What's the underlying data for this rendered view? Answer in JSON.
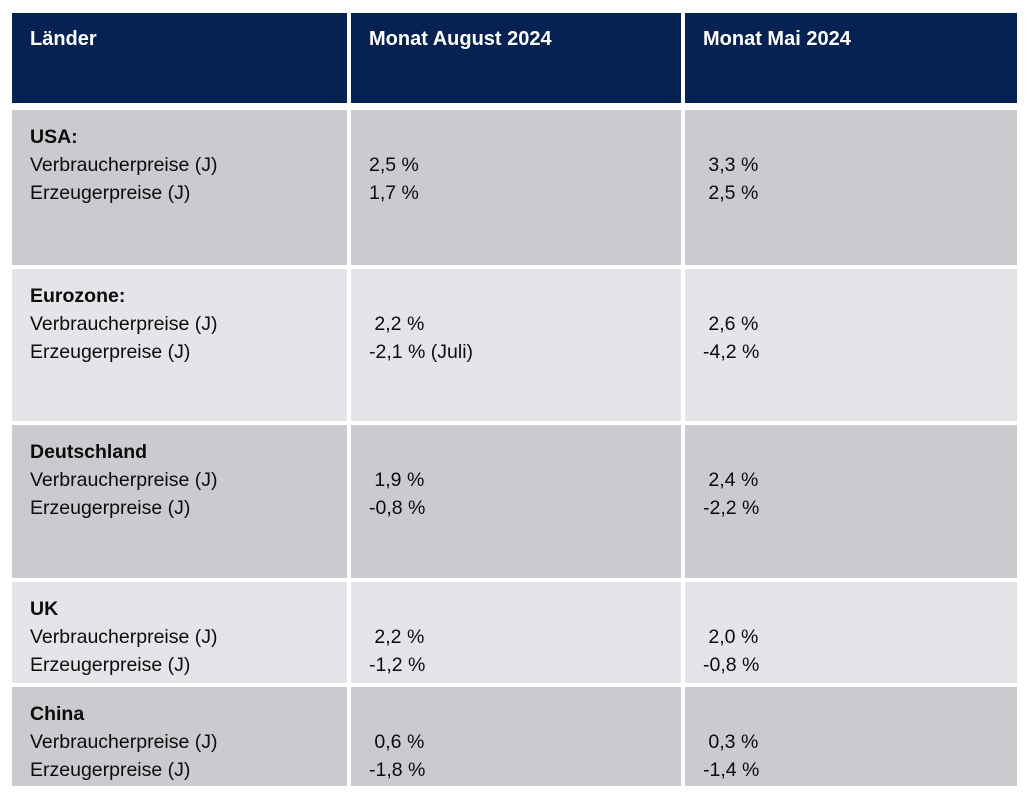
{
  "table": {
    "header": {
      "col_land": "Länder",
      "col_aug": "Monat August 2024",
      "col_mai": "Monat Mai 2024"
    },
    "rows": [
      {
        "country": "USA:",
        "label1": "Verbraucherpreise (J)",
        "label2": "Erzeugerpreise (J)",
        "aug1": "2,5 %",
        "aug2": "1,7 %",
        "mai1": " 3,3 %",
        "mai2": " 2,5 %"
      },
      {
        "country": "Eurozone:",
        "label1": "Verbraucherpreise (J)",
        "label2": "Erzeugerpreise (J)",
        "aug1": " 2,2 %",
        "aug2": "-2,1 % (Juli)",
        "mai1": " 2,6 %",
        "mai2": "-4,2 %"
      },
      {
        "country": "Deutschland",
        "label1": "Verbraucherpreise (J)",
        "label2": "Erzeugerpreise (J)",
        "aug1": " 1,9 %",
        "aug2": "-0,8 %",
        "mai1": " 2,4 %",
        "mai2": "-2,2 %"
      },
      {
        "country": "UK",
        "label1": "Verbraucherpreise (J)",
        "label2": "Erzeugerpreise (J)",
        "aug1": " 2,2 %",
        "aug2": "-1,2 %",
        "mai1": " 2,0 %",
        "mai2": "-0,8 %"
      },
      {
        "country": "China",
        "label1": "Verbraucherpreise (J)",
        "label2": "Erzeugerpreise (J)",
        "aug1": " 0,6 %",
        "aug2": "-1,8 %",
        "mai1": " 0,3 %",
        "mai2": "-1,4 %"
      }
    ],
    "colors": {
      "header_bg": "#062253",
      "header_text": "#ffffff",
      "row_dark": "#c9cbce",
      "row_light": "#e5e5e9",
      "text": "#0b0b0b"
    }
  }
}
